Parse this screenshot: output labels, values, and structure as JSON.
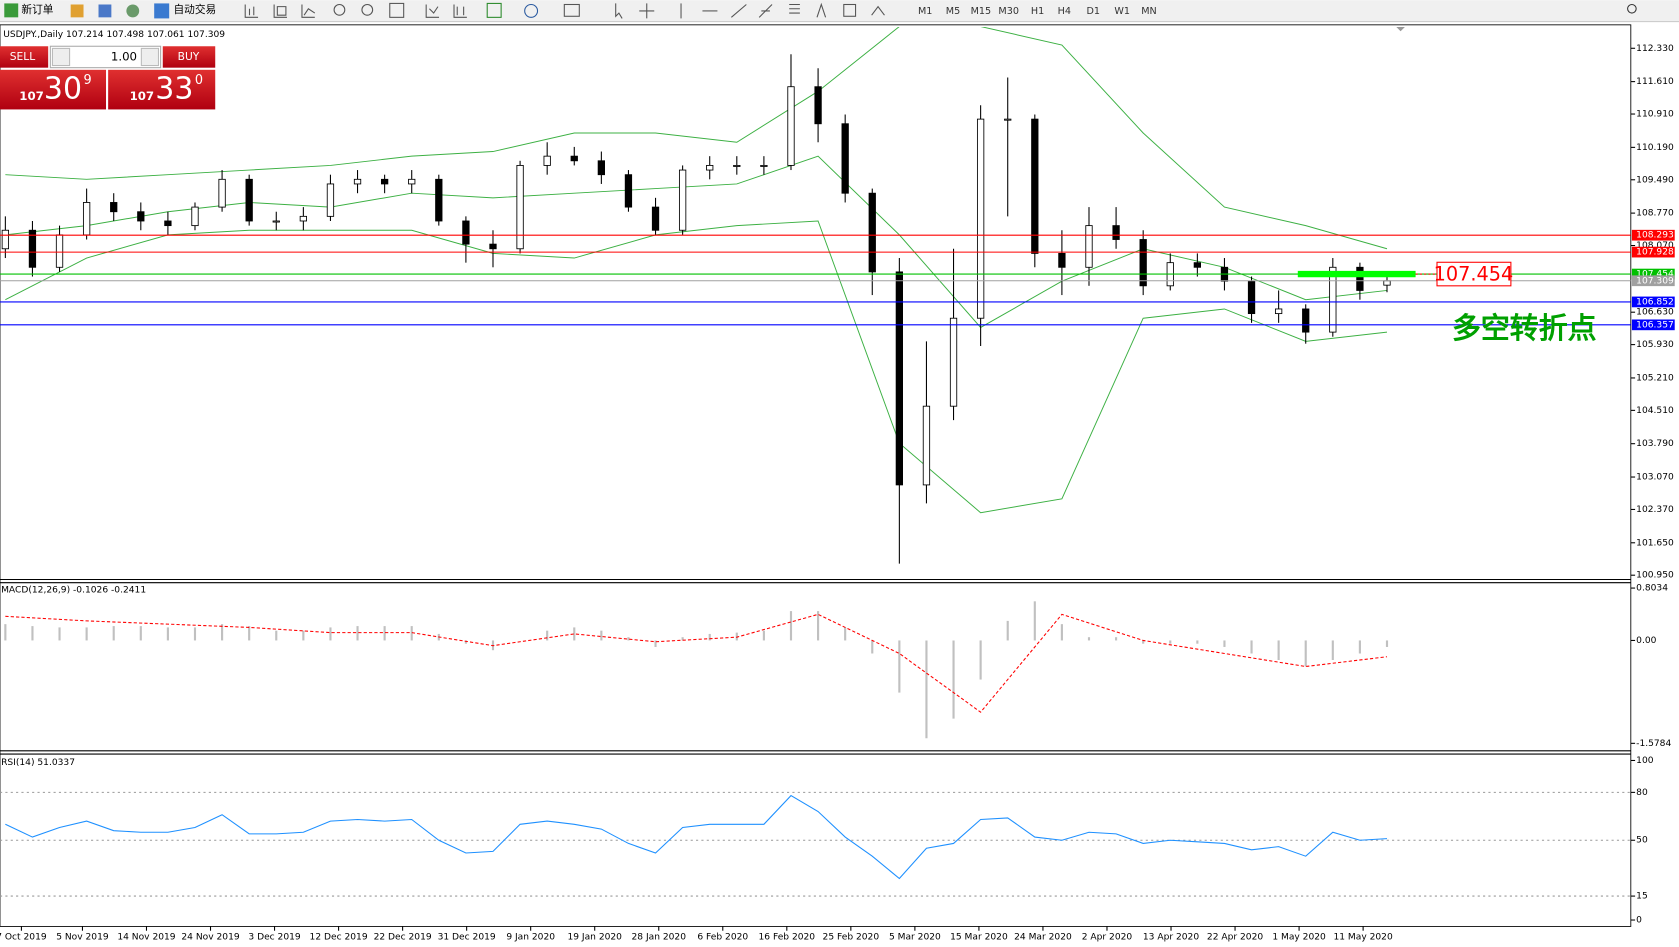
{
  "toolbar": {
    "new_order": "新订单",
    "auto_trading": "自动交易",
    "timeframes": [
      "M1",
      "M5",
      "M15",
      "M30",
      "H1",
      "H4",
      "D1",
      "W1",
      "MN"
    ]
  },
  "trade_panel": {
    "sell": "SELL",
    "buy": "BUY",
    "lot": "1.00",
    "sell_big": "107",
    "sell_pips": "30",
    "sell_frac": "9",
    "buy_big": "107",
    "buy_pips": "33",
    "buy_frac": "0"
  },
  "chart_data": [
    {
      "type": "candlestick",
      "title": "USDJPY.,Daily  107.214 107.498 107.061 107.309",
      "ylim": [
        100.88,
        112.79
      ],
      "yticks": [
        {
          "value": 112.33,
          "label": "112.330"
        },
        {
          "value": 111.61,
          "label": "111.610"
        },
        {
          "value": 110.91,
          "label": "110.910"
        },
        {
          "value": 110.19,
          "label": "110.190"
        },
        {
          "value": 109.49,
          "label": "109.490"
        },
        {
          "value": 108.77,
          "label": "108.770"
        },
        {
          "value": 108.07,
          "label": "108.070"
        },
        {
          "value": 106.63,
          "label": "106.630"
        },
        {
          "value": 105.93,
          "label": "105.930"
        },
        {
          "value": 105.21,
          "label": "105.210"
        },
        {
          "value": 104.51,
          "label": "104.510"
        },
        {
          "value": 103.79,
          "label": "103.790"
        },
        {
          "value": 103.07,
          "label": "103.070"
        },
        {
          "value": 102.37,
          "label": "102.370"
        },
        {
          "value": 101.65,
          "label": "101.650"
        },
        {
          "value": 100.95,
          "label": "100.950"
        }
      ],
      "x_labels": [
        "7 Oct 2019",
        "5 Nov 2019",
        "14 Nov 2019",
        "24 Nov 2019",
        "3 Dec 2019",
        "12 Dec 2019",
        "22 Dec 2019",
        "31 Dec 2019",
        "9 Jan 2020",
        "19 Jan 2020",
        "28 Jan 2020",
        "6 Feb 2020",
        "16 Feb 2020",
        "25 Feb 2020",
        "5 Mar 2020",
        "15 Mar 2020",
        "24 Mar 2020",
        "2 Apr 2020",
        "13 Apr 2020",
        "22 Apr 2020",
        "1 May 2020",
        "11 May 2020"
      ],
      "open": [
        108.0,
        108.4,
        107.6,
        108.3,
        109.0,
        108.8,
        108.6,
        108.5,
        108.9,
        109.5,
        108.6,
        108.6,
        108.7,
        109.4,
        109.5,
        109.4,
        109.5,
        108.6,
        108.1,
        108.0,
        109.8,
        110.0,
        109.9,
        109.6,
        108.9,
        108.4,
        109.7,
        109.8,
        109.8,
        109.8,
        111.5,
        110.7,
        109.2,
        107.5,
        102.9,
        104.6,
        106.5,
        110.8,
        110.8,
        107.9,
        107.6,
        108.5,
        108.2,
        107.2,
        107.7,
        107.6,
        107.3,
        106.6,
        106.7,
        106.2,
        107.6,
        107.214
      ],
      "high": [
        108.7,
        108.6,
        108.5,
        109.3,
        109.2,
        109.0,
        108.8,
        109.0,
        109.7,
        109.6,
        108.8,
        108.9,
        109.6,
        109.7,
        109.6,
        109.7,
        109.6,
        108.7,
        108.4,
        109.9,
        110.3,
        110.2,
        110.1,
        109.7,
        109.1,
        109.8,
        110.0,
        110.0,
        110.0,
        112.2,
        111.9,
        110.9,
        109.3,
        107.8,
        106.0,
        108.0,
        111.1,
        111.7,
        110.9,
        108.4,
        108.9,
        108.9,
        108.4,
        107.9,
        107.9,
        107.8,
        107.4,
        107.1,
        106.8,
        107.8,
        107.7,
        107.498
      ],
      "low": [
        107.8,
        107.4,
        107.5,
        108.2,
        108.6,
        108.4,
        108.3,
        108.4,
        108.8,
        108.5,
        108.4,
        108.4,
        108.6,
        109.2,
        109.2,
        109.2,
        108.5,
        107.7,
        107.6,
        107.9,
        109.6,
        109.8,
        109.4,
        108.8,
        108.3,
        108.3,
        109.5,
        109.6,
        109.6,
        109.7,
        110.3,
        109.0,
        107.0,
        101.2,
        102.5,
        104.3,
        105.9,
        108.7,
        107.6,
        107.0,
        107.2,
        108.0,
        107.0,
        107.1,
        107.4,
        107.1,
        106.4,
        106.4,
        105.95,
        106.1,
        106.9,
        107.061
      ],
      "close": [
        108.4,
        107.6,
        108.3,
        109.0,
        108.8,
        108.6,
        108.5,
        108.9,
        109.5,
        108.6,
        108.6,
        108.7,
        109.4,
        109.5,
        109.4,
        109.5,
        108.6,
        108.1,
        108.0,
        109.8,
        110.0,
        109.9,
        109.6,
        108.9,
        108.4,
        109.7,
        109.8,
        109.8,
        109.8,
        111.5,
        110.7,
        109.2,
        107.5,
        102.9,
        104.6,
        106.5,
        110.8,
        110.8,
        107.9,
        107.6,
        108.5,
        108.2,
        107.2,
        107.7,
        107.6,
        107.3,
        106.6,
        106.7,
        106.2,
        107.6,
        107.1,
        107.309
      ],
      "bands": {
        "color": "#3cb043",
        "upper": [
          109.6,
          109.5,
          109.6,
          109.7,
          109.8,
          110.0,
          110.1,
          110.5,
          110.5,
          110.3,
          111.4,
          112.8,
          112.8,
          112.4,
          110.5,
          108.9,
          108.5,
          108.0
        ],
        "middle": [
          108.3,
          108.5,
          108.8,
          109.0,
          108.9,
          109.2,
          109.1,
          109.2,
          109.3,
          109.4,
          110.0,
          108.3,
          106.3,
          107.3,
          108.0,
          107.6,
          106.9,
          107.1
        ],
        "lower": [
          106.9,
          107.8,
          108.3,
          108.4,
          108.4,
          108.4,
          107.9,
          107.8,
          108.3,
          108.5,
          108.6,
          103.8,
          102.3,
          102.6,
          106.5,
          106.7,
          106.0,
          106.2
        ]
      },
      "levels": [
        {
          "value": 108.293,
          "color": "#ff0000"
        },
        {
          "value": 107.928,
          "color": "#ff0000"
        },
        {
          "value": 107.454,
          "color": "#00c000"
        },
        {
          "value": 107.309,
          "color": "#a0a0a0"
        },
        {
          "value": 106.852,
          "color": "#0000ff"
        },
        {
          "value": 106.357,
          "color": "#0000ff"
        }
      ],
      "annotation": {
        "value": 107.454,
        "color": "#00ff00",
        "note": "多空转折点"
      }
    },
    {
      "type": "macd",
      "title": "MACD(12,26,9) -0.1026 -0.2411",
      "ylim": [
        -1.677,
        0.869
      ],
      "yticks": [
        0.8034,
        {
          "value": 0,
          "label": "0.00"
        },
        -1.5784
      ],
      "histogram": [
        0.25,
        0.22,
        0.2,
        0.2,
        0.22,
        0.22,
        0.2,
        0.2,
        0.25,
        0.22,
        0.15,
        0.15,
        0.2,
        0.22,
        0.22,
        0.22,
        0.1,
        -0.05,
        -0.15,
        0.0,
        0.15,
        0.2,
        0.15,
        0.05,
        -0.1,
        0.05,
        0.1,
        0.12,
        0.15,
        0.45,
        0.45,
        0.2,
        -0.2,
        -0.8,
        -1.5,
        -1.2,
        -0.6,
        0.3,
        0.6,
        0.25,
        0.05,
        0.05,
        -0.05,
        -0.05,
        -0.05,
        -0.1,
        -0.2,
        -0.3,
        -0.4,
        -0.3,
        -0.2,
        -0.1
      ],
      "signal": [
        0.37,
        0.3,
        0.25,
        0.2,
        0.12,
        0.12,
        -0.08,
        0.1,
        -0.02,
        0.05,
        0.4,
        -0.2,
        -1.1,
        0.4,
        0.0,
        -0.2,
        -0.4,
        -0.25
      ],
      "colors": {
        "histogram": "#c0c0c0",
        "signal": "#ff0000"
      }
    },
    {
      "type": "line",
      "title": "RSI(14) 51.0337",
      "ylim": [
        0,
        100
      ],
      "yticks": [
        100,
        80,
        50,
        15,
        0
      ],
      "levels": [
        80,
        50,
        15
      ],
      "color": "#1e90ff",
      "values": [
        60,
        52,
        58,
        62,
        56,
        55,
        55,
        58,
        66,
        54,
        54,
        55,
        62,
        63,
        62,
        63,
        50,
        42,
        43,
        60,
        62,
        60,
        57,
        48,
        42,
        58,
        60,
        60,
        60,
        78,
        68,
        52,
        40,
        26,
        45,
        48,
        63,
        64,
        52,
        50,
        55,
        54,
        48,
        50,
        49,
        48,
        44,
        46,
        40,
        55,
        50,
        51
      ]
    }
  ]
}
